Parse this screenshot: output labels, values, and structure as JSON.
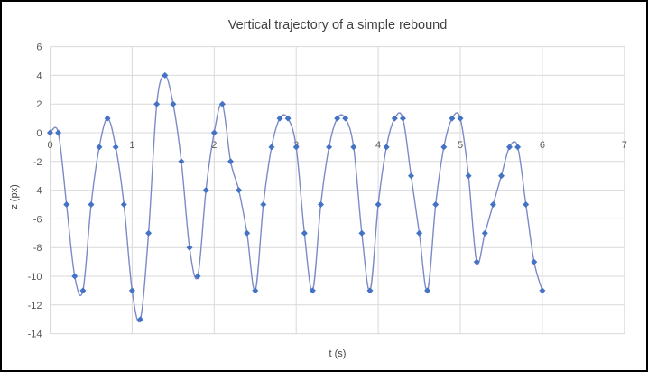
{
  "chart_data": {
    "type": "line",
    "title": "Vertical trajectory of a simple rebound",
    "xlabel": "t (s)",
    "ylabel": "z (px)",
    "x": [
      0.0,
      0.1,
      0.2,
      0.3,
      0.4,
      0.5,
      0.6,
      0.7,
      0.8,
      0.9,
      1.0,
      1.1,
      1.2,
      1.3,
      1.4,
      1.5,
      1.6,
      1.7,
      1.8,
      1.9,
      2.0,
      2.1,
      2.2,
      2.3,
      2.4,
      2.5,
      2.6,
      2.7,
      2.8,
      2.9,
      3.0,
      3.1,
      3.2,
      3.3,
      3.4,
      3.5,
      3.6,
      3.7,
      3.8,
      3.9,
      4.0,
      4.1,
      4.2,
      4.3,
      4.4,
      4.5,
      4.6,
      4.7,
      4.8,
      4.9,
      5.0,
      5.1,
      5.2,
      5.3,
      5.4,
      5.5,
      5.6,
      5.7,
      5.8,
      5.9,
      6.0
    ],
    "values": [
      0,
      0,
      -5,
      -10,
      -11,
      -5,
      -1,
      1,
      -1,
      -5,
      -11,
      -13,
      -7,
      2,
      4,
      2,
      -2,
      -8,
      -10,
      -4,
      0,
      2,
      -2,
      -4,
      -7,
      -11,
      -5,
      -1,
      1,
      1,
      -1,
      -7,
      -11,
      -5,
      -1,
      1,
      1,
      -1,
      -7,
      -11,
      -5,
      -1,
      1,
      1,
      -3,
      -7,
      -11,
      -5,
      -1,
      1,
      1,
      -3,
      -9,
      -7,
      -5,
      -3,
      -1,
      -1,
      -5,
      -9,
      -11
    ],
    "xlim": [
      0,
      7
    ],
    "ylim": [
      -14,
      6
    ],
    "x_ticks": [
      "0",
      "1",
      "2",
      "3",
      "4",
      "5",
      "6",
      "7"
    ],
    "y_ticks": [
      "6",
      "4",
      "2",
      "0",
      "-2",
      "-4",
      "-6",
      "-8",
      "-10",
      "-12",
      "-14"
    ],
    "grid": true,
    "legend_position": "none",
    "smooth_line": true,
    "marker_shape": "diamond",
    "line_color": "#7c8bc8",
    "marker_color": "#4472c4",
    "grid_color": "#d9d9d9",
    "tick_color": "#595959",
    "title_color": "#404040"
  }
}
